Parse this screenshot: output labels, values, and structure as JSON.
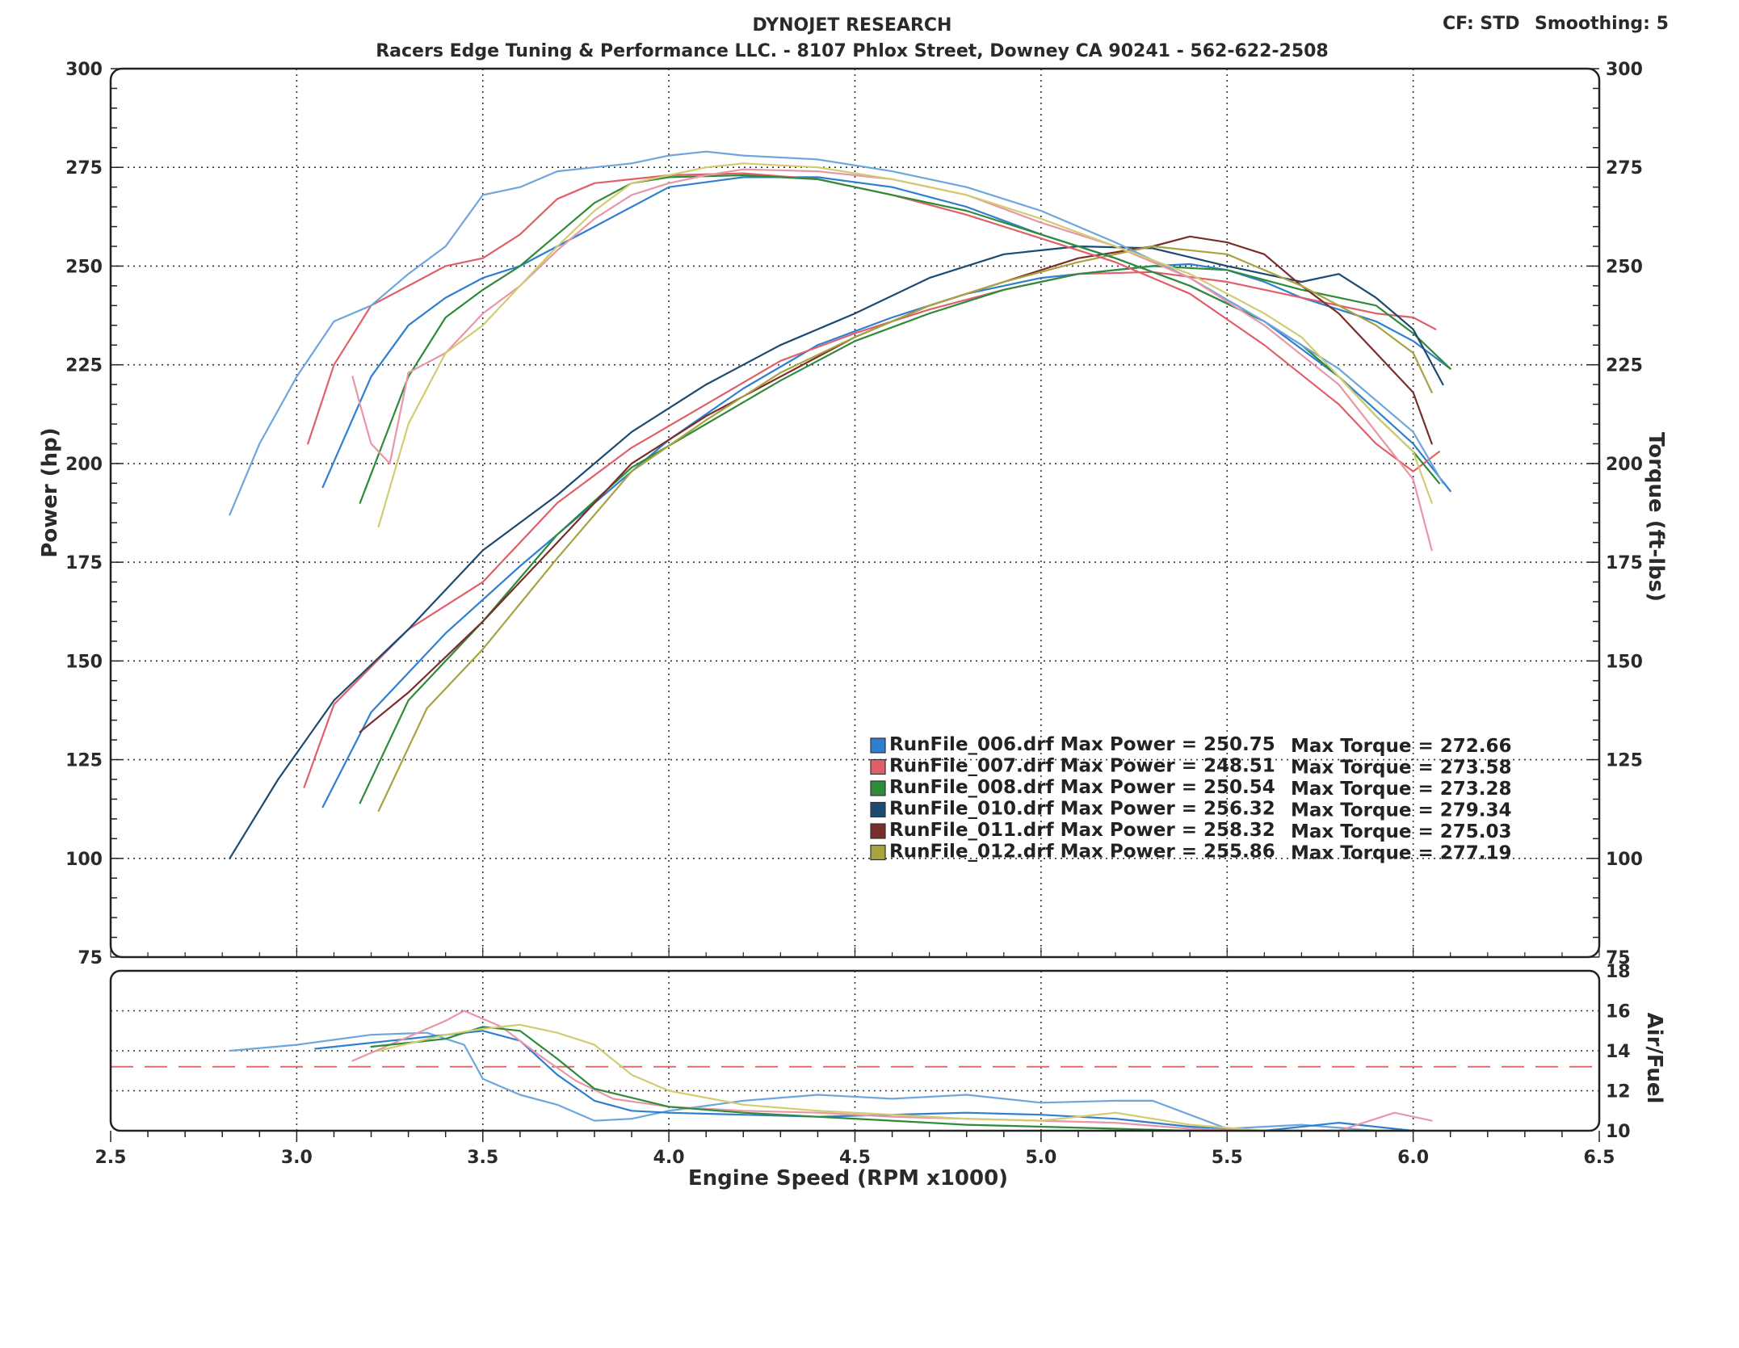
{
  "header": {
    "title": "DYNOJET RESEARCH",
    "subtitle": "Racers Edge Tuning & Performance LLC. - 8107 Phlox Street, Downey CA 90241 - 562-622-2508",
    "cf_label": "CF: STD",
    "smoothing_label": "Smoothing: 5"
  },
  "chart_data": [
    {
      "type": "line",
      "title": "DYNOJET RESEARCH",
      "subtitle": "Racers Edge Tuning & Performance LLC. - 8107 Phlox Street, Downey CA 90241 - 562-622-2508",
      "xlabel": "Engine Speed (RPM x1000)",
      "ylabel": "Power (hp)",
      "ylabel_right": "Torque (ft-lbs)",
      "xlim": [
        2.5,
        6.5
      ],
      "ylim": [
        75,
        300
      ],
      "ylim_right": [
        75,
        300
      ],
      "x_ticks": [
        "2.5",
        "3.0",
        "3.5",
        "4.0",
        "4.5",
        "5.0",
        "5.5",
        "6.0",
        "6.5"
      ],
      "y_ticks": [
        "75",
        "100",
        "125",
        "150",
        "175",
        "200",
        "225",
        "250",
        "275",
        "300"
      ],
      "y_ticks_right": [
        "75",
        "100",
        "125",
        "150",
        "175",
        "200",
        "225",
        "250",
        "275",
        "300"
      ],
      "grid": true,
      "legend_position": "lower-right",
      "legend": [
        {
          "label": "RunFile_006.drf",
          "power_text": "Max Power = 250.75",
          "torque_text": "Max Torque = 272.66",
          "color": "#2f7fd0"
        },
        {
          "label": "RunFile_007.drf",
          "power_text": "Max Power = 248.51",
          "torque_text": "Max Torque = 273.58",
          "color": "#e0606a"
        },
        {
          "label": "RunFile_008.drf",
          "power_text": "Max Power = 250.54",
          "torque_text": "Max Torque = 273.28",
          "color": "#2f8a3a"
        },
        {
          "label": "RunFile_010.drf",
          "power_text": "Max Power = 256.32",
          "torque_text": "Max Torque = 279.34",
          "color": "#1d4a70"
        },
        {
          "label": "RunFile_011.drf",
          "power_text": "Max Power = 258.32",
          "torque_text": "Max Torque = 275.03",
          "color": "#7a2e2a"
        },
        {
          "label": "RunFile_012.drf",
          "power_text": "Max Power = 255.86",
          "torque_text": "Max Torque = 277.19",
          "color": "#a8a240"
        }
      ],
      "series": [
        {
          "name": "RunFile_006.drf Power",
          "color": "#2f7fd0",
          "kind": "power",
          "x": [
            3.07,
            3.2,
            3.4,
            3.6,
            3.8,
            4.0,
            4.2,
            4.4,
            4.6,
            4.8,
            5.0,
            5.2,
            5.3,
            5.4,
            5.5,
            5.6,
            5.7,
            5.8,
            5.9,
            6.0,
            6.1
          ],
          "y": [
            113,
            137,
            157,
            174,
            190,
            206,
            219,
            230,
            237,
            243,
            247,
            249,
            250,
            250.5,
            249,
            246,
            242,
            239,
            236,
            231,
            224
          ]
        },
        {
          "name": "RunFile_007.drf Power",
          "color": "#e0606a",
          "kind": "power",
          "x": [
            3.02,
            3.1,
            3.3,
            3.5,
            3.7,
            3.9,
            4.1,
            4.3,
            4.5,
            4.7,
            4.9,
            5.1,
            5.3,
            5.5,
            5.7,
            5.9,
            6.0,
            6.06
          ],
          "y": [
            118,
            139,
            158,
            170,
            190,
            204,
            215,
            226,
            233,
            239,
            244,
            248,
            248.5,
            246,
            242,
            238,
            237,
            234
          ]
        },
        {
          "name": "RunFile_008.drf Power",
          "color": "#2f8a3a",
          "kind": "power",
          "x": [
            3.17,
            3.3,
            3.5,
            3.7,
            3.9,
            4.1,
            4.3,
            4.5,
            4.7,
            4.9,
            5.1,
            5.3,
            5.5,
            5.7,
            5.9,
            6.0,
            6.1
          ],
          "y": [
            114,
            140,
            160,
            182,
            199,
            210,
            221,
            231,
            238,
            244,
            248,
            250,
            249,
            244,
            240,
            233,
            224
          ]
        },
        {
          "name": "RunFile_010.drf Power",
          "color": "#1d4a70",
          "kind": "power",
          "x": [
            2.82,
            2.95,
            3.1,
            3.3,
            3.5,
            3.7,
            3.9,
            4.1,
            4.3,
            4.5,
            4.7,
            4.9,
            5.1,
            5.3,
            5.5,
            5.6,
            5.7,
            5.8,
            5.9,
            6.0,
            6.08
          ],
          "y": [
            100,
            120,
            140,
            158,
            178,
            192,
            208,
            220,
            230,
            238,
            247,
            253,
            255,
            254.5,
            250,
            248,
            246,
            248,
            242,
            234,
            220
          ]
        },
        {
          "name": "RunFile_011.drf Power",
          "color": "#7a2e2a",
          "kind": "power",
          "x": [
            3.17,
            3.3,
            3.5,
            3.7,
            3.9,
            4.1,
            4.3,
            4.5,
            4.7,
            4.9,
            5.1,
            5.3,
            5.4,
            5.5,
            5.6,
            5.7,
            5.8,
            5.9,
            6.0,
            6.05
          ],
          "y": [
            132,
            142,
            160,
            180,
            200,
            212,
            222,
            232,
            240,
            246,
            252,
            255,
            257.5,
            256,
            253,
            245,
            238,
            228,
            218,
            205
          ]
        },
        {
          "name": "RunFile_012.drf Power",
          "color": "#a8a240",
          "kind": "power",
          "x": [
            3.22,
            3.35,
            3.5,
            3.7,
            3.9,
            4.1,
            4.3,
            4.5,
            4.7,
            4.9,
            5.1,
            5.3,
            5.5,
            5.7,
            5.9,
            6.0,
            6.05
          ],
          "y": [
            112,
            138,
            153,
            176,
            198,
            211,
            223,
            232,
            240,
            246,
            251,
            255,
            253,
            245,
            235,
            228,
            218
          ]
        },
        {
          "name": "RunFile_006.drf Torque",
          "color": "#2f7fd0",
          "kind": "torque",
          "x": [
            3.07,
            3.2,
            3.3,
            3.4,
            3.5,
            3.6,
            3.8,
            4.0,
            4.2,
            4.4,
            4.6,
            4.8,
            5.0,
            5.2,
            5.4,
            5.6,
            5.8,
            6.0,
            6.1
          ],
          "y": [
            194,
            222,
            235,
            242,
            247,
            250,
            260,
            270,
            272.5,
            272.5,
            270,
            265,
            258,
            252,
            245,
            236,
            222,
            205,
            193
          ]
        },
        {
          "name": "RunFile_007.drf Torque",
          "color": "#e0606a",
          "kind": "torque",
          "x": [
            3.03,
            3.1,
            3.2,
            3.3,
            3.4,
            3.5,
            3.6,
            3.7,
            3.8,
            3.9,
            4.0,
            4.2,
            4.4,
            4.6,
            4.8,
            5.0,
            5.2,
            5.4,
            5.6,
            5.8,
            5.9,
            6.0,
            6.07
          ],
          "y": [
            205,
            225,
            240,
            245,
            250,
            252,
            258,
            267,
            271,
            272,
            273,
            273.5,
            272,
            268,
            263,
            257,
            251,
            243,
            230,
            215,
            205,
            198,
            203
          ]
        },
        {
          "name": "RunFile_008.drf Torque",
          "color": "#2f8a3a",
          "kind": "torque",
          "x": [
            3.17,
            3.3,
            3.4,
            3.5,
            3.6,
            3.7,
            3.8,
            3.9,
            4.0,
            4.2,
            4.4,
            4.6,
            4.8,
            5.0,
            5.2,
            5.4,
            5.6,
            5.7,
            5.8,
            5.9,
            6.0,
            6.07
          ],
          "y": [
            190,
            222,
            237,
            244,
            250,
            258,
            266,
            271,
            272.5,
            273,
            272,
            268,
            264,
            258,
            252,
            245,
            236,
            230,
            222,
            212,
            203,
            195
          ]
        },
        {
          "name": "RunFile_010.drf Torque",
          "color": "#6ea6dc",
          "kind": "torque",
          "x": [
            2.82,
            2.9,
            3.0,
            3.1,
            3.2,
            3.3,
            3.4,
            3.5,
            3.6,
            3.7,
            3.8,
            3.9,
            4.0,
            4.1,
            4.2,
            4.4,
            4.6,
            4.8,
            5.0,
            5.2,
            5.4,
            5.6,
            5.8,
            6.0,
            6.08
          ],
          "y": [
            187,
            205,
            222,
            236,
            240,
            248,
            255,
            268,
            270,
            274,
            275,
            276,
            278,
            279,
            278,
            277,
            274,
            270,
            264,
            256,
            247,
            236,
            224,
            208,
            195
          ]
        },
        {
          "name": "RunFile_011.drf Torque",
          "color": "#e896a8",
          "kind": "torque",
          "x": [
            3.15,
            3.17,
            3.2,
            3.25,
            3.3,
            3.4,
            3.5,
            3.6,
            3.7,
            3.8,
            3.9,
            4.0,
            4.1,
            4.2,
            4.4,
            4.6,
            4.8,
            5.0,
            5.2,
            5.4,
            5.6,
            5.8,
            5.9,
            6.0,
            6.05
          ],
          "y": [
            222,
            215,
            205,
            200,
            223,
            228,
            238,
            245,
            254,
            262,
            268,
            271,
            273,
            274.5,
            274,
            272,
            268,
            261,
            255,
            247,
            235,
            220,
            208,
            196,
            178
          ]
        },
        {
          "name": "RunFile_012.drf Torque",
          "color": "#d2cc70",
          "kind": "torque",
          "x": [
            3.22,
            3.3,
            3.4,
            3.5,
            3.6,
            3.7,
            3.8,
            3.9,
            4.0,
            4.1,
            4.2,
            4.4,
            4.6,
            4.8,
            5.0,
            5.2,
            5.4,
            5.6,
            5.7,
            5.8,
            5.9,
            6.0,
            6.05
          ],
          "y": [
            184,
            210,
            228,
            235,
            245,
            255,
            264,
            271,
            273,
            275,
            276,
            275,
            272,
            268,
            262,
            255,
            248,
            238,
            232,
            222,
            212,
            203,
            190
          ]
        }
      ]
    },
    {
      "type": "line",
      "xlabel": "Engine Speed (RPM x1000)",
      "ylabel_right": "Air/Fuel",
      "xlim": [
        2.5,
        6.5
      ],
      "ylim": [
        10,
        18
      ],
      "y_ticks_right": [
        "10",
        "12",
        "14",
        "16",
        "18"
      ],
      "grid": true,
      "reference_line": {
        "y": 13.2,
        "color": "#e06a6a",
        "style": "dashed"
      },
      "series": [
        {
          "name": "RunFile_010.drf Air/Fuel",
          "color": "#6ea6dc",
          "x": [
            2.82,
            3.0,
            3.2,
            3.35,
            3.45,
            3.5,
            3.6,
            3.7,
            3.8,
            3.9,
            4.0,
            4.2,
            4.4,
            4.6,
            4.8,
            5.0,
            5.2,
            5.3,
            5.4,
            5.5,
            5.7,
            5.9,
            6.0
          ],
          "y": [
            14.0,
            14.3,
            14.8,
            14.9,
            14.3,
            12.6,
            11.8,
            11.3,
            10.5,
            10.6,
            11.0,
            11.5,
            11.8,
            11.6,
            11.8,
            11.4,
            11.5,
            11.5,
            10.8,
            10.1,
            10.3,
            10.0,
            10.0
          ]
        },
        {
          "name": "RunFile_006.drf Air/Fuel",
          "color": "#2f7fd0",
          "x": [
            3.05,
            3.3,
            3.5,
            3.6,
            3.7,
            3.8,
            3.9,
            4.0,
            4.2,
            4.4,
            4.6,
            4.8,
            5.0,
            5.2,
            5.4,
            5.6,
            5.8,
            6.0
          ],
          "y": [
            14.1,
            14.6,
            15.0,
            14.5,
            12.8,
            11.5,
            11.0,
            10.9,
            10.8,
            10.7,
            10.8,
            10.9,
            10.8,
            10.6,
            10.2,
            10.0,
            10.4,
            10.0
          ]
        },
        {
          "name": "RunFile_007.drf Air/Fuel",
          "color": "#e896a8",
          "x": [
            3.15,
            3.3,
            3.4,
            3.45,
            3.55,
            3.65,
            3.75,
            3.85,
            4.0,
            4.2,
            4.4,
            4.6,
            4.8,
            5.0,
            5.2,
            5.4,
            5.6,
            5.8,
            5.95,
            6.05
          ],
          "y": [
            13.5,
            14.7,
            15.5,
            16.0,
            15.2,
            13.8,
            12.5,
            11.6,
            11.2,
            11.0,
            10.9,
            10.7,
            10.6,
            10.5,
            10.4,
            10.1,
            10.0,
            10.0,
            10.9,
            10.5
          ]
        },
        {
          "name": "RunFile_008.drf Air/Fuel",
          "color": "#2f8a3a",
          "x": [
            3.2,
            3.4,
            3.5,
            3.6,
            3.7,
            3.8,
            4.0,
            4.2,
            4.4,
            4.6,
            4.8,
            5.0,
            5.2,
            5.4,
            5.6,
            5.8,
            6.0
          ],
          "y": [
            14.2,
            14.6,
            15.2,
            15.0,
            13.6,
            12.1,
            11.2,
            10.9,
            10.7,
            10.5,
            10.3,
            10.2,
            10.1,
            10.0,
            10.0,
            10.0,
            10.0
          ]
        },
        {
          "name": "RunFile_012.drf Air/Fuel",
          "color": "#d2cc70",
          "x": [
            3.22,
            3.4,
            3.5,
            3.6,
            3.7,
            3.8,
            3.9,
            4.0,
            4.2,
            4.4,
            4.6,
            4.8,
            5.0,
            5.2,
            5.4,
            5.6,
            5.8,
            6.0
          ],
          "y": [
            14.0,
            14.8,
            15.1,
            15.3,
            14.9,
            14.3,
            12.8,
            12.0,
            11.3,
            11.0,
            10.8,
            10.6,
            10.5,
            10.9,
            10.3,
            10.0,
            10.0,
            10.0
          ]
        }
      ]
    }
  ]
}
